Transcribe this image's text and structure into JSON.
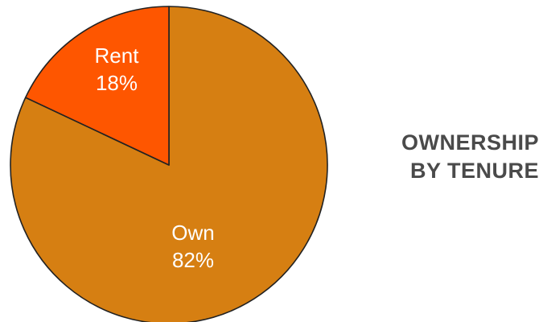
{
  "chart_data": {
    "type": "pie",
    "title": [
      "OWNERSHIP",
      "BY TENURE"
    ],
    "slices": [
      {
        "label": "Own",
        "value": 82,
        "value_label": "82%",
        "color": "#D67F12"
      },
      {
        "label": "Rent",
        "value": 18,
        "value_label": "18%",
        "color": "#FE5600"
      }
    ],
    "stroke_color": "#222222",
    "label_color": "#ffffff"
  }
}
